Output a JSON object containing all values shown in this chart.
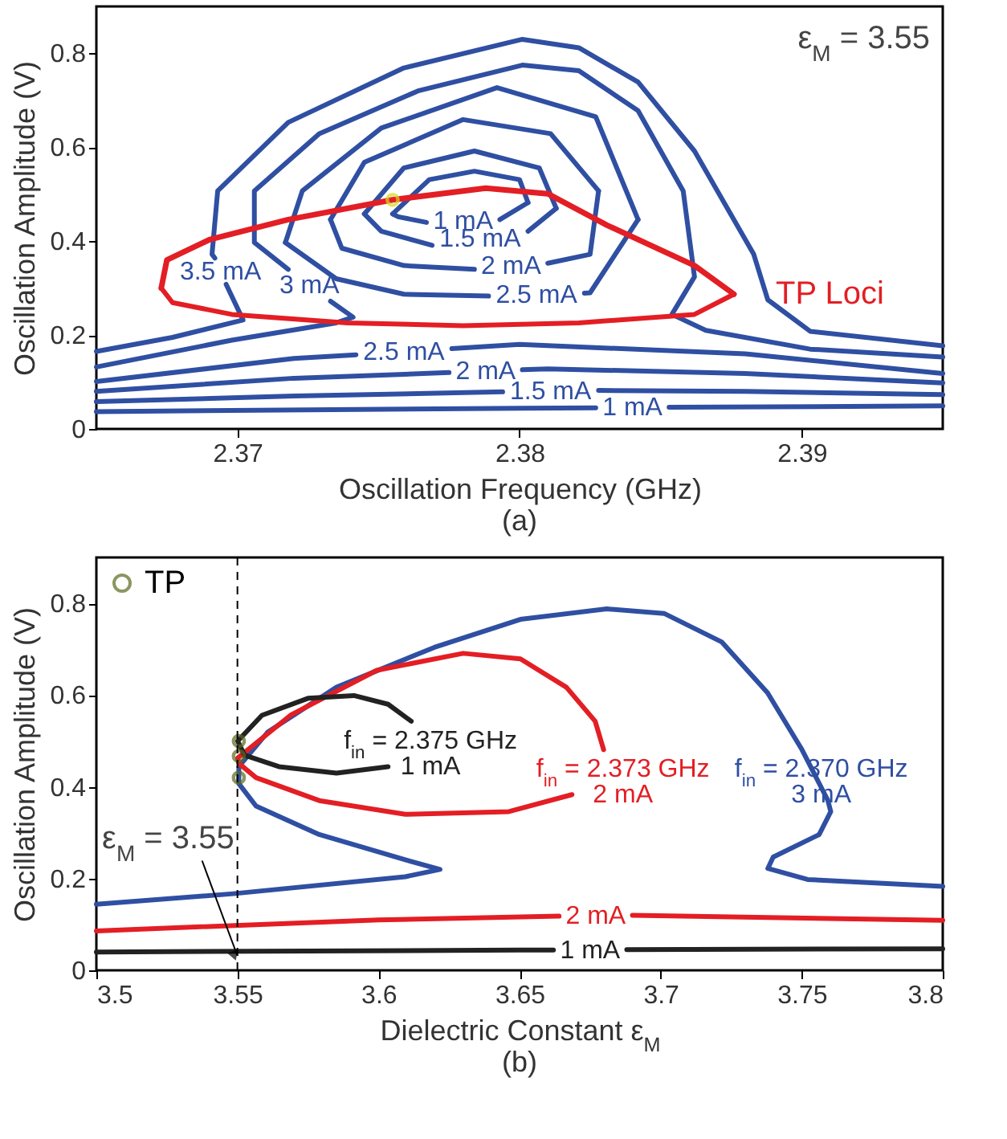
{
  "chart_data": [
    {
      "type": "line",
      "title": "(a)",
      "xlabel": "Oscillation Frequency (GHz)",
      "ylabel": "Oscillation Amplitude (V)",
      "xlim": [
        2.365,
        2.395
      ],
      "xticks": [
        2.37,
        2.38,
        2.39
      ],
      "ylim": [
        0,
        0.9
      ],
      "yticks": [
        0,
        0.2,
        0.4,
        0.6,
        0.8
      ],
      "grid": false,
      "annotations": [
        "ε$_{M}$ = 3.55",
        {
          "text": "1 mA",
          "x": 2.3767,
          "y": 0.44
        },
        {
          "text": "1.5 mA",
          "x": 2.3769,
          "y": 0.391
        },
        {
          "text": "2 mA",
          "x": 2.3784,
          "y": 0.34
        },
        {
          "text": "2.5 mA",
          "x": 2.3789,
          "y": 0.283
        },
        {
          "text": "3.5 mA",
          "x": 2.3696,
          "y": 0.308
        },
        {
          "text": "3 mA",
          "x": 2.3733,
          "y": 0.272
        },
        {
          "text": "2.5 mA",
          "x": 2.3742,
          "y": 0.158
        },
        {
          "text": "2 mA",
          "x": 2.3775,
          "y": 0.12
        },
        {
          "text": "1.5 mA",
          "x": 2.3794,
          "y": 0.079
        },
        {
          "text": "1 mA",
          "x": 2.3827,
          "y": 0.045
        }
      ],
      "series": [
        {
          "color": "#2f4fa2",
          "x": [
            2.365,
            2.3677,
            2.3702,
            2.3696,
            2.3694,
            2.3692,
            2.3691,
            2.3693,
            2.3718,
            2.3759,
            2.3801,
            2.3821,
            2.3842,
            2.3862,
            2.3883,
            2.3888,
            2.3903,
            2.395
          ],
          "values": [
            0.165,
            0.195,
            0.232,
            0.308,
            null,
            0.364,
            0.372,
            0.507,
            0.653,
            0.769,
            0.83,
            0.812,
            0.739,
            0.592,
            0.372,
            0.275,
            0.208,
            0.177
          ]
        },
        {
          "color": "#2f4fa2",
          "x": [
            2.365,
            2.3698,
            2.3735,
            2.3741,
            2.3733,
            2.3725,
            2.3718,
            2.3706,
            2.3706,
            2.3729,
            2.3764,
            2.3801,
            2.3821,
            2.3842,
            2.3858,
            2.3862,
            2.3854,
            2.3866,
            2.3903,
            2.395
          ],
          "values": [
            0.132,
            0.189,
            0.226,
            0.238,
            0.272,
            null,
            0.34,
            0.397,
            0.507,
            0.629,
            0.72,
            0.775,
            0.763,
            0.678,
            0.507,
            0.324,
            0.244,
            0.21,
            0.17,
            0.153
          ]
        },
        {
          "color": "#2f4fa2",
          "x": [
            2.3717,
            2.3723,
            2.3751,
            2.3792,
            2.3827,
            2.3842
          ],
          "values": [
            0.397,
            0.507,
            0.641,
            0.727,
            0.665,
            0.446
          ]
        },
        {
          "color": "#2f4fa2",
          "x": [
            2.3717,
            2.3735,
            2.3759,
            2.3789,
            2.3806,
            2.3823,
            2.3825,
            2.3842
          ],
          "values": [
            0.397,
            0.32,
            0.287,
            0.283,
            null,
            0.289,
            0.29,
            0.446
          ]
        },
        {
          "color": "#2f4fa2",
          "x": [
            2.3733,
            2.3745,
            2.378,
            2.3811,
            2.3828
          ],
          "values": [
            0.446,
            0.568,
            0.659,
            0.629,
            0.507
          ]
        },
        {
          "color": "#2f4fa2",
          "x": [
            2.3733,
            2.3737,
            2.3759,
            2.3784,
            2.3797,
            2.381,
            2.3825,
            2.3828
          ],
          "values": [
            0.446,
            0.385,
            0.348,
            0.34,
            null,
            0.353,
            0.372,
            0.507
          ]
        },
        {
          "color": "#2f4fa2",
          "x": [
            2.3745,
            2.3759,
            2.3784,
            2.3807,
            2.3813
          ],
          "values": [
            0.458,
            0.556,
            0.592,
            0.556,
            0.47
          ]
        },
        {
          "color": "#2f4fa2",
          "x": [
            2.3745,
            2.3751,
            2.3769,
            2.3786,
            2.3803,
            2.3813
          ],
          "values": [
            0.458,
            0.421,
            0.391,
            null,
            0.421,
            0.47
          ]
        },
        {
          "color": "#2f4fa2",
          "x": [
            2.3755,
            2.3768,
            2.3784,
            2.38,
            2.3803
          ],
          "values": [
            0.458,
            0.531,
            0.549,
            0.531,
            0.482
          ]
        },
        {
          "color": "#2f4fa2",
          "x": [
            2.3755,
            2.3757,
            2.3767,
            2.378,
            2.3793,
            2.3803
          ],
          "values": [
            0.458,
            0.452,
            0.44,
            null,
            0.446,
            0.482
          ]
        },
        {
          "color": "#2f4fa2",
          "x": [
            2.365,
            2.372,
            2.3742,
            2.3759,
            2.3776,
            2.38,
            2.388,
            2.395
          ],
          "values": [
            0.101,
            0.15,
            0.158,
            null,
            0.171,
            0.18,
            0.16,
            0.118
          ]
        },
        {
          "color": "#2f4fa2",
          "x": [
            2.365,
            2.372,
            2.3775,
            2.3788,
            2.3801,
            2.381,
            2.388,
            2.395
          ],
          "values": [
            0.08,
            0.108,
            0.12,
            null,
            0.126,
            0.128,
            0.118,
            0.098
          ]
        },
        {
          "color": "#2f4fa2",
          "x": [
            2.365,
            2.372,
            2.3794,
            2.3811,
            2.3828,
            2.388,
            2.395
          ],
          "values": [
            0.058,
            0.07,
            0.079,
            null,
            0.082,
            0.08,
            0.073
          ]
        },
        {
          "color": "#2f4fa2",
          "x": [
            2.365,
            2.38,
            2.3827,
            2.384,
            2.3853,
            2.395
          ],
          "values": [
            0.037,
            0.044,
            0.045,
            null,
            0.046,
            0.049
          ]
        },
        {
          "name": "TP Loci",
          "color": "#e31e24",
          "x": [
            2.3673,
            2.3675,
            2.369,
            2.3718,
            2.3755,
            2.3788,
            2.381,
            2.3831,
            2.3862,
            2.3876
          ],
          "values": [
            0.3,
            0.36,
            0.403,
            0.446,
            0.488,
            0.513,
            0.501,
            0.434,
            0.348,
            0.287
          ]
        },
        {
          "color": "#e31e24",
          "x": [
            2.3673,
            2.3677,
            2.3698,
            2.3739,
            2.378,
            2.3821,
            2.3862,
            2.3876
          ],
          "values": [
            0.3,
            0.269,
            0.244,
            0.226,
            0.22,
            0.226,
            0.244,
            0.287
          ]
        },
        {
          "type": "scatter",
          "color": "#d8d820",
          "x": [
            2.3755
          ],
          "values": [
            0.488
          ]
        }
      ]
    },
    {
      "type": "line",
      "title": "(b)",
      "xlabel": "Dielectric Constant ε$_{M}$",
      "ylabel": "Oscillation Amplitude (V)",
      "xlim": [
        3.5,
        3.8
      ],
      "xticks": [
        3.5,
        3.55,
        3.6,
        3.65,
        3.7,
        3.75,
        3.8
      ],
      "ylim": [
        0,
        0.9
      ],
      "yticks": [
        0,
        0.2,
        0.4,
        0.6,
        0.8
      ],
      "grid": false,
      "legend": "top left",
      "ref_lines": [
        {
          "axis": "x",
          "value": 3.55,
          "label": "ε$_{M}$ = 3.55",
          "line_style": "dashed",
          "color": "#000000"
        }
      ],
      "annotations": [
        {
          "text": "f$_{in}$ = 2.375 GHz",
          "x": 3.6116,
          "y": 0.543
        },
        {
          "text": "1 mA",
          "x": 3.6116,
          "y": 0.543
        },
        {
          "text": "f$_{in}$ = 2.373 GHz",
          "x": 3.6798,
          "y": 0.481
        },
        {
          "text": "2 mA",
          "x": 3.6798,
          "y": 0.481
        },
        {
          "text": "f$_{in}$ = 2.370 GHz",
          "x": 3.7501,
          "y": 0.481
        },
        {
          "text": "3 mA",
          "x": 3.7501,
          "y": 0.481
        },
        {
          "text": "2 mA",
          "x": 3.664,
          "y": 0.118
        },
        {
          "text": "1 mA",
          "x": 3.662,
          "y": 0.044
        }
      ],
      "series": [
        {
          "color": "#2f4fa2",
          "x": [
            3.5,
            3.5485,
            3.6095,
            3.6218,
            3.6095,
            3.579,
            3.5566,
            3.5505,
            3.5505,
            3.5607,
            3.5851,
            3.6198,
            3.6503,
            3.6809,
            3.7012,
            3.7216,
            3.7379,
            3.7501,
            3.7593,
            3.7603,
            3.7562,
            3.7399,
            3.738,
            3.7521,
            3.8
          ],
          "values": [
            0.144,
            0.167,
            0.204,
            0.22,
            0.241,
            0.296,
            0.358,
            0.407,
            0.444,
            0.519,
            0.617,
            0.704,
            0.765,
            0.788,
            0.778,
            0.716,
            0.605,
            0.481,
            0.37,
            0.346,
            0.296,
            0.247,
            0.222,
            0.198,
            0.183
          ]
        },
        {
          "color": "#e31e24",
          "x": [
            3.6686,
            3.6462,
            3.6095,
            3.579,
            3.5566,
            3.5505,
            3.5501,
            3.5688,
            3.5994,
            3.63,
            3.6503,
            3.6666,
            3.6768,
            3.6798
          ],
          "values": [
            0.383,
            0.346,
            0.34,
            0.37,
            0.42,
            0.451,
            0.463,
            0.556,
            0.654,
            0.691,
            0.679,
            0.617,
            0.543,
            0.481
          ]
        },
        {
          "color": "#e31e24",
          "x": [
            3.5,
            3.6,
            3.664,
            3.677,
            3.69,
            3.8
          ],
          "values": [
            0.086,
            0.11,
            0.118,
            null,
            0.12,
            0.109
          ]
        },
        {
          "color": "#222222",
          "x": [
            3.6034,
            3.5851,
            3.5647,
            3.5525,
            3.5501,
            3.5587,
            3.575,
            3.5913,
            3.6034,
            3.6116
          ],
          "values": [
            0.444,
            0.43,
            0.444,
            0.469,
            0.5,
            0.556,
            0.593,
            0.599,
            0.58,
            0.543
          ]
        },
        {
          "color": "#222222",
          "x": [
            3.5,
            3.65,
            3.662,
            3.675,
            3.688,
            3.8
          ],
          "values": [
            0.04,
            0.044,
            0.044,
            null,
            0.045,
            0.047
          ]
        },
        {
          "type": "scatter",
          "name": "TP",
          "color": "#5b6b1f",
          "x": [
            3.5505,
            3.5505,
            3.5505
          ],
          "values": [
            0.5,
            0.467,
            0.42
          ]
        }
      ]
    }
  ]
}
